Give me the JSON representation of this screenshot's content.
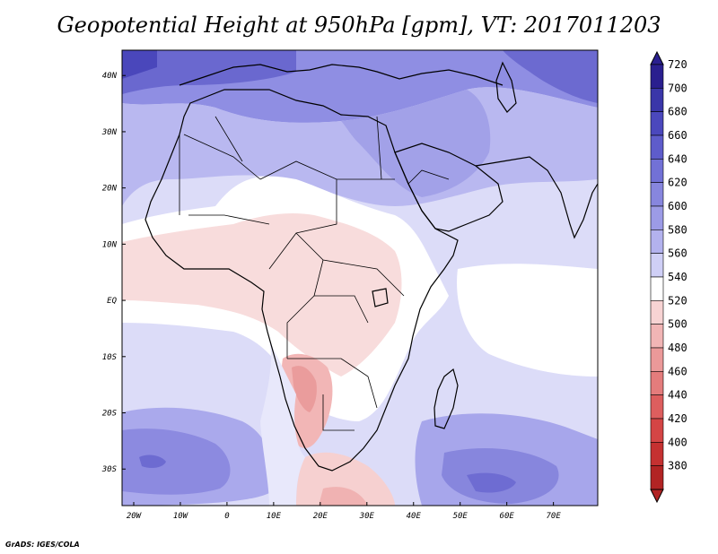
{
  "title": "Geopotential Height at 950hPa [gpm], VT: 2017011203",
  "credit": "GrADS: IGES/COLA",
  "colors": {
    "land_outline": "#000000",
    "frame": "#000000"
  },
  "lon_ticks": [
    {
      "value": -20,
      "label": "20W"
    },
    {
      "value": -10,
      "label": "10W"
    },
    {
      "value": 0,
      "label": "0"
    },
    {
      "value": 10,
      "label": "10E"
    },
    {
      "value": 20,
      "label": "20E"
    },
    {
      "value": 30,
      "label": "30E"
    },
    {
      "value": 40,
      "label": "40E"
    },
    {
      "value": 50,
      "label": "50E"
    },
    {
      "value": 60,
      "label": "60E"
    },
    {
      "value": 70,
      "label": "70E"
    }
  ],
  "lat_ticks": [
    {
      "value": 40,
      "label": "40N"
    },
    {
      "value": 30,
      "label": "30N"
    },
    {
      "value": 20,
      "label": "20N"
    },
    {
      "value": 10,
      "label": "10N"
    },
    {
      "value": 0,
      "label": "EQ"
    },
    {
      "value": -10,
      "label": "10S"
    },
    {
      "value": -20,
      "label": "20S"
    },
    {
      "value": -30,
      "label": "30S"
    }
  ],
  "colorbar": {
    "levels": [
      "720",
      "700",
      "680",
      "660",
      "640",
      "620",
      "600",
      "580",
      "560",
      "540",
      "520",
      "500",
      "480",
      "460",
      "440",
      "420",
      "400",
      "380"
    ],
    "colors": [
      "#2a1f8f",
      "#3a36a9",
      "#4b48bd",
      "#5e5ccb",
      "#7271d6",
      "#8786de",
      "#9c9be6",
      "#b3b2ee",
      "#cfcff6",
      "#ffffff",
      "#f7d3d3",
      "#f1b5b5",
      "#eb9999",
      "#e47c7c",
      "#dd5e5e",
      "#d44545",
      "#c53131",
      "#b22424"
    ]
  }
}
